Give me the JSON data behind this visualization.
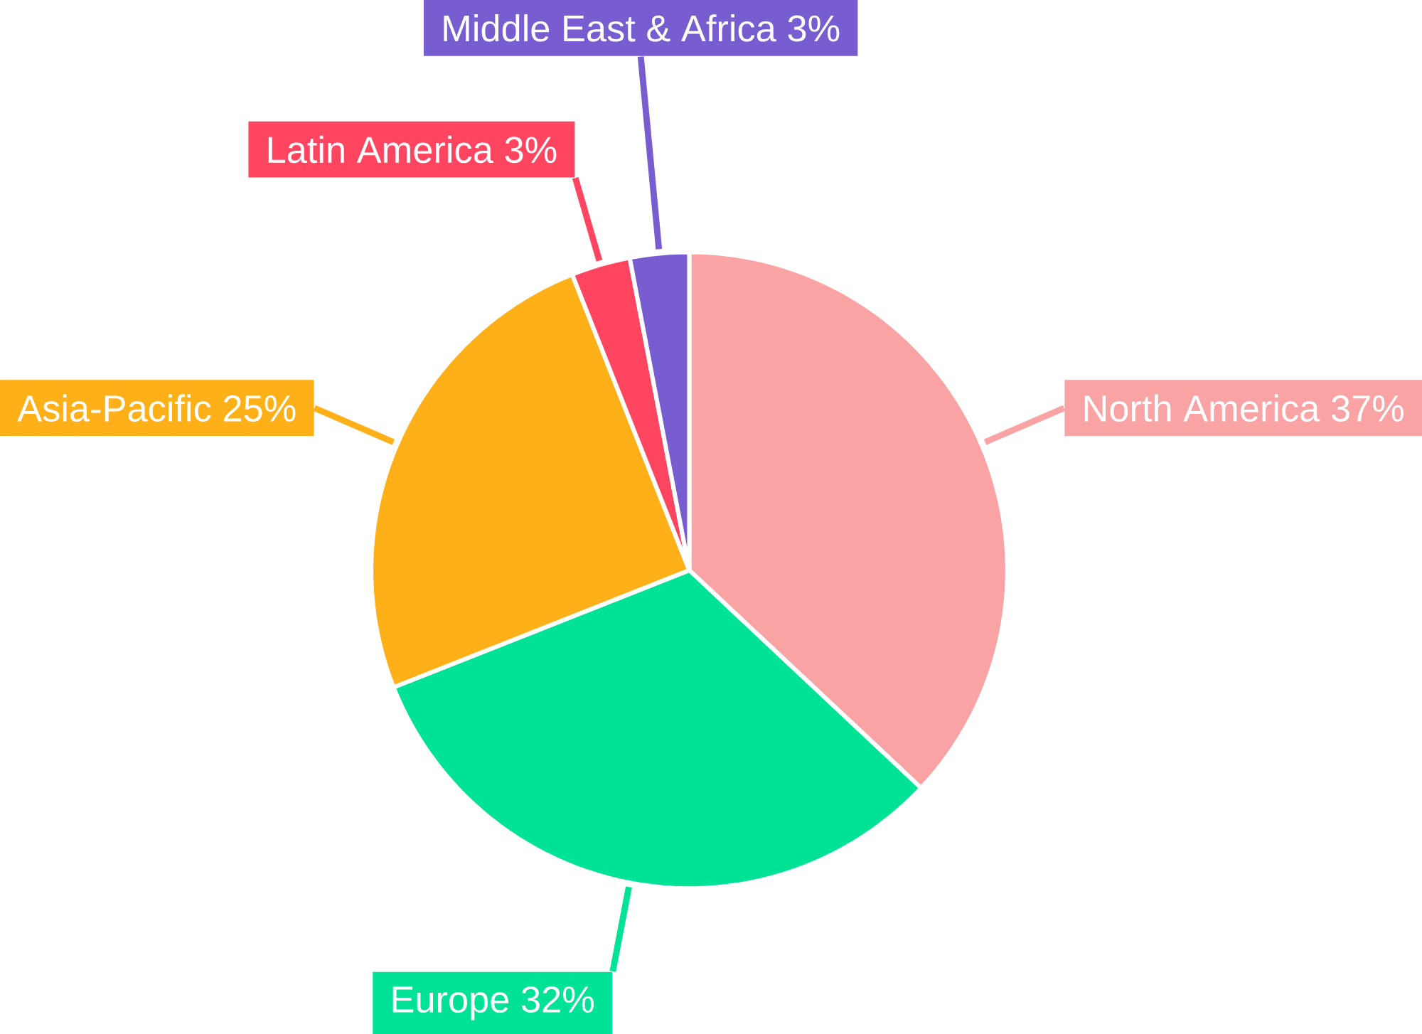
{
  "chart_data": {
    "type": "pie",
    "categories": [
      "North America",
      "Europe",
      "Asia-Pacific",
      "Latin America",
      "Middle East & Africa"
    ],
    "values": [
      37,
      32,
      25,
      3,
      3
    ],
    "value_labels": [
      "37%",
      "32%",
      "25%",
      "3%",
      "3%"
    ],
    "colors": [
      "#f9a3a4",
      "#00e396",
      "#feb019",
      "#ff4560",
      "#775dd0"
    ]
  }
}
